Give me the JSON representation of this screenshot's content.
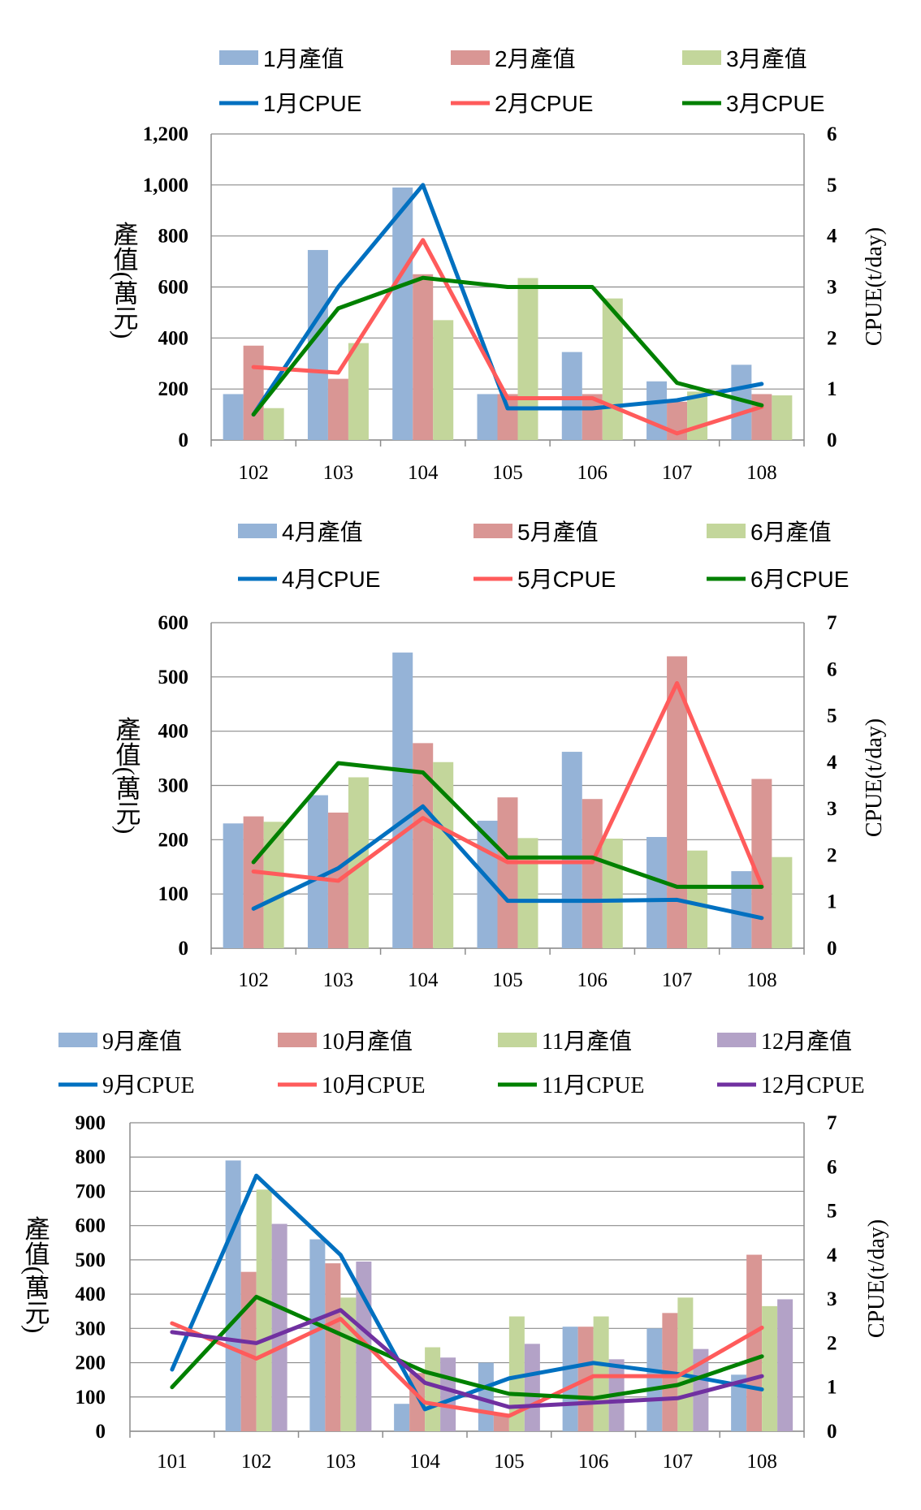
{
  "chart_data": [
    {
      "type": "bar+line",
      "categories": [
        "102",
        "103",
        "104",
        "105",
        "106",
        "107",
        "108"
      ],
      "series": [
        {
          "name": "1月產值",
          "kind": "bar",
          "axis": "left",
          "color": "#95B3D7",
          "values": [
            180,
            745,
            990,
            180,
            345,
            230,
            295
          ]
        },
        {
          "name": "2月產值",
          "kind": "bar",
          "axis": "left",
          "color": "#D99694",
          "values": [
            370,
            240,
            650,
            180,
            180,
            150,
            180
          ]
        },
        {
          "name": "3月產值",
          "kind": "bar",
          "axis": "left",
          "color": "#C3D69B",
          "values": [
            125,
            380,
            470,
            635,
            555,
            190,
            175
          ]
        },
        {
          "name": "1月CPUE",
          "kind": "line",
          "axis": "right",
          "color": "#0070C0",
          "values": [
            0.5,
            3.0,
            5.0,
            0.62,
            0.62,
            0.78,
            1.1
          ]
        },
        {
          "name": "2月CPUE",
          "kind": "line",
          "axis": "right",
          "color": "#FF5B5B",
          "values": [
            1.43,
            1.32,
            3.92,
            0.82,
            0.82,
            0.13,
            0.65
          ]
        },
        {
          "name": "3月CPUE",
          "kind": "line",
          "axis": "right",
          "color": "#008000",
          "values": [
            0.5,
            2.58,
            3.18,
            3.0,
            3.0,
            1.12,
            0.68
          ]
        }
      ],
      "ylabel": "產值(萬元)",
      "y2label": "CPUE(t/day)",
      "ylim": [
        0,
        1200
      ],
      "yticks": [
        "0",
        "200",
        "400",
        "600",
        "800",
        "1,000",
        "1,200"
      ],
      "y2lim": [
        0,
        6
      ],
      "y2ticks": [
        "0",
        "1",
        "2",
        "3",
        "4",
        "5",
        "6"
      ],
      "legend_position": "top"
    },
    {
      "type": "bar+line",
      "categories": [
        "102",
        "103",
        "104",
        "105",
        "106",
        "107",
        "108"
      ],
      "series": [
        {
          "name": "4月產值",
          "kind": "bar",
          "axis": "left",
          "color": "#95B3D7",
          "values": [
            230,
            282,
            545,
            235,
            362,
            205,
            142
          ]
        },
        {
          "name": "5月產值",
          "kind": "bar",
          "axis": "left",
          "color": "#D99694",
          "values": [
            243,
            250,
            378,
            278,
            275,
            538,
            312
          ]
        },
        {
          "name": "6月產值",
          "kind": "bar",
          "axis": "left",
          "color": "#C3D69B",
          "values": [
            233,
            315,
            343,
            203,
            202,
            180,
            168
          ]
        },
        {
          "name": "4月CPUE",
          "kind": "line",
          "axis": "right",
          "color": "#0070C0",
          "values": [
            0.85,
            1.72,
            3.05,
            1.02,
            1.02,
            1.04,
            0.65
          ]
        },
        {
          "name": "5月CPUE",
          "kind": "line",
          "axis": "right",
          "color": "#FF5B5B",
          "values": [
            1.65,
            1.45,
            2.8,
            1.85,
            1.85,
            5.7,
            1.35
          ]
        },
        {
          "name": "6月CPUE",
          "kind": "line",
          "axis": "right",
          "color": "#008000",
          "values": [
            1.85,
            3.98,
            3.78,
            1.95,
            1.95,
            1.32,
            1.32
          ]
        }
      ],
      "ylabel": "產值(萬元)",
      "y2label": "CPUE(t/day)",
      "ylim": [
        0,
        600
      ],
      "yticks": [
        "0",
        "100",
        "200",
        "300",
        "400",
        "500",
        "600"
      ],
      "y2lim": [
        0,
        7
      ],
      "y2ticks": [
        "0",
        "1",
        "2",
        "3",
        "4",
        "5",
        "6",
        "7"
      ],
      "legend_position": "top"
    },
    {
      "type": "bar+line",
      "categories": [
        "101",
        "102",
        "103",
        "104",
        "105",
        "106",
        "107",
        "108"
      ],
      "series": [
        {
          "name": "9月產值",
          "kind": "bar",
          "axis": "left",
          "color": "#95B3D7",
          "values": [
            0,
            790,
            560,
            80,
            200,
            305,
            300,
            165
          ]
        },
        {
          "name": "10月產值",
          "kind": "bar",
          "axis": "left",
          "color": "#D99694",
          "values": [
            0,
            465,
            490,
            170,
            50,
            305,
            345,
            515
          ]
        },
        {
          "name": "11月產值",
          "kind": "bar",
          "axis": "left",
          "color": "#C3D69B",
          "values": [
            0,
            705,
            390,
            245,
            335,
            335,
            390,
            365
          ]
        },
        {
          "name": "12月產值",
          "kind": "bar",
          "axis": "left",
          "color": "#B3A2C7",
          "values": [
            0,
            605,
            495,
            215,
            255,
            210,
            240,
            385
          ]
        },
        {
          "name": "9月CPUE",
          "kind": "line",
          "axis": "right",
          "color": "#0070C0",
          "values": [
            1.4,
            5.8,
            4.0,
            0.5,
            1.2,
            1.55,
            1.3,
            0.95
          ]
        },
        {
          "name": "10月CPUE",
          "kind": "line",
          "axis": "right",
          "color": "#FF5B5B",
          "values": [
            2.45,
            1.65,
            2.55,
            0.65,
            0.35,
            1.25,
            1.25,
            2.35
          ]
        },
        {
          "name": "11月CPUE",
          "kind": "line",
          "axis": "right",
          "color": "#008000",
          "values": [
            1.0,
            3.05,
            2.2,
            1.35,
            0.85,
            0.75,
            1.05,
            1.7
          ]
        },
        {
          "name": "12月CPUE",
          "kind": "line",
          "axis": "right",
          "color": "#7030A0",
          "values": [
            2.25,
            2.0,
            2.75,
            1.1,
            0.55,
            0.65,
            0.75,
            1.25
          ]
        }
      ],
      "ylabel": "產值(萬元)",
      "y2label": "CPUE(t/day)",
      "ylim": [
        0,
        900
      ],
      "yticks": [
        "0",
        "100",
        "200",
        "300",
        "400",
        "500",
        "600",
        "700",
        "800",
        "900"
      ],
      "y2lim": [
        0,
        7
      ],
      "y2ticks": [
        "0",
        "1",
        "2",
        "3",
        "4",
        "5",
        "6",
        "7"
      ],
      "legend_position": "top"
    }
  ]
}
